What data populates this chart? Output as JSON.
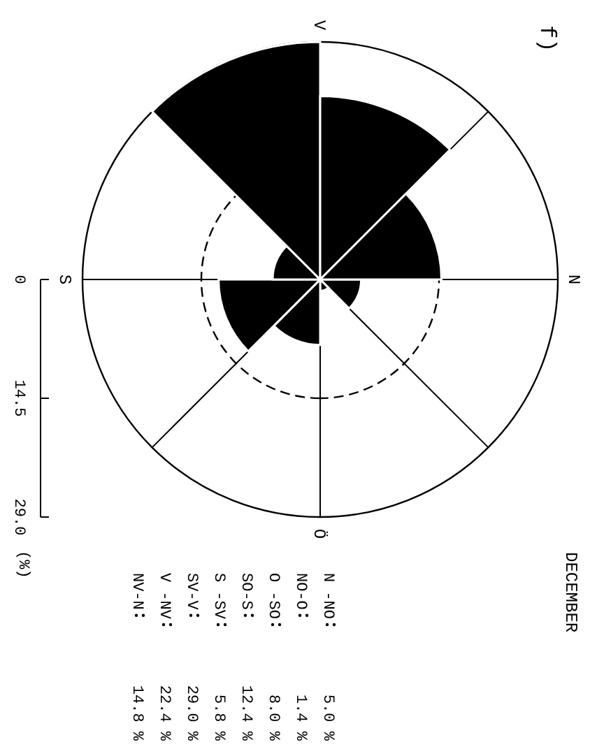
{
  "chart_data": {
    "type": "other",
    "title": "DECEMBER",
    "ylabel": "(%)",
    "categories": [
      "N -NO",
      "NO-O",
      "O -SO",
      "SO-S",
      "S -SV",
      "SV-V",
      "V -NV",
      "NV-N"
    ],
    "values": [
      5.0,
      1.4,
      8.0,
      12.4,
      5.8,
      29.0,
      22.4,
      14.8
    ],
    "value_labels": [
      "5.0 %",
      "1.4 %",
      "8.0 %",
      "12.4 %",
      "5.8 %",
      "29.0 %",
      "22.4 %",
      "14.8 %"
    ],
    "color": "#000000",
    "annotations": [
      "f)",
      "N",
      "Ö",
      "S",
      "V",
      "0",
      "14.5",
      "29.0"
    ]
  }
}
